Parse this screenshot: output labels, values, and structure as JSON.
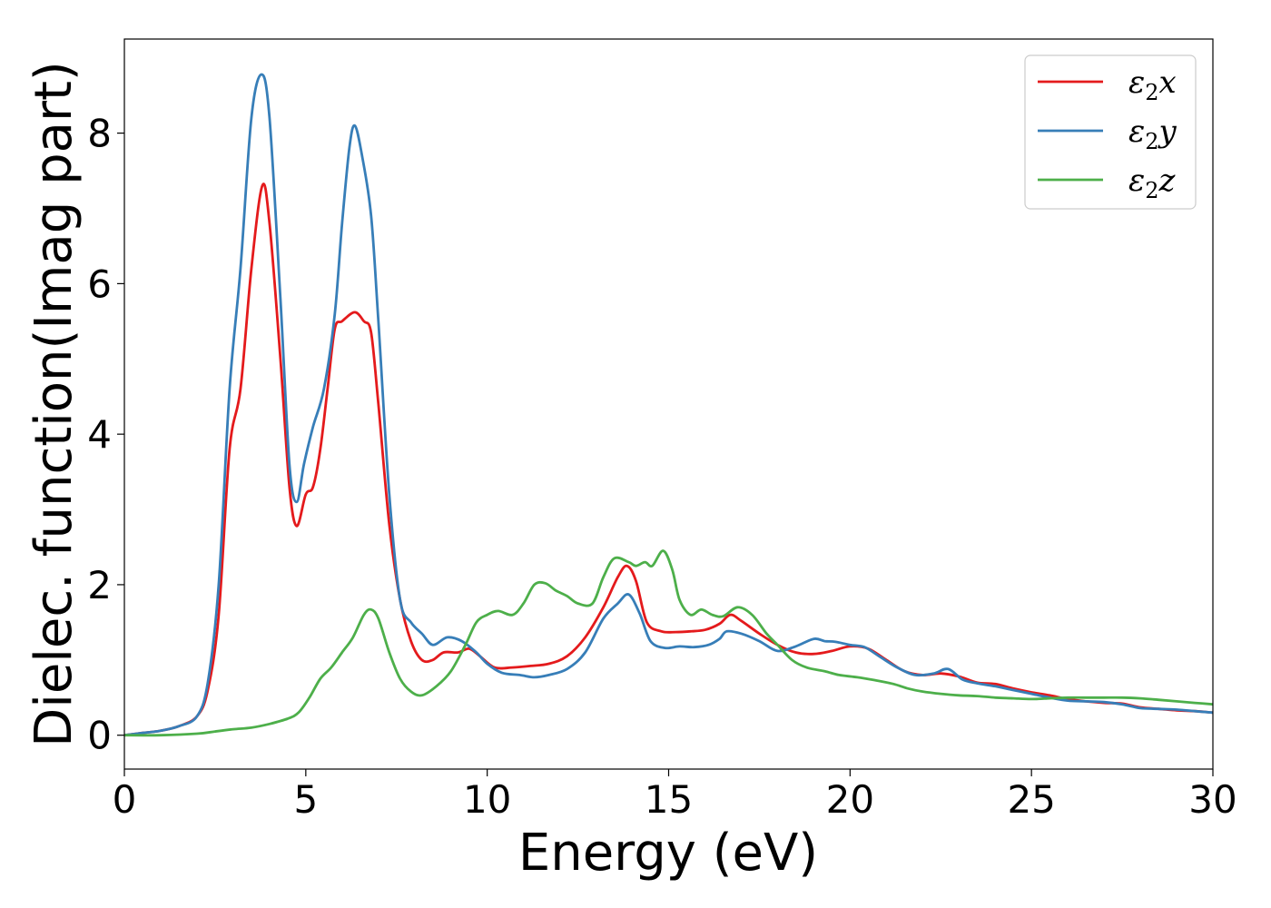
{
  "chart_data": {
    "type": "line",
    "title": "",
    "xlabel": "Energy (eV)",
    "ylabel": "Dielec. function(Imag part)",
    "xlim": [
      0,
      30
    ],
    "ylim": [
      -0.45,
      9.25
    ],
    "xticks": [
      0,
      5,
      10,
      15,
      20,
      25,
      30
    ],
    "yticks": [
      0,
      2,
      4,
      6,
      8
    ],
    "grid": false,
    "legend": {
      "position": "top-right",
      "entries": [
        {
          "series": 0,
          "base": "ε",
          "sub": "2",
          "tail": "x"
        },
        {
          "series": 1,
          "base": "ε",
          "sub": "2",
          "tail": "y"
        },
        {
          "series": 2,
          "base": "ε",
          "sub": "2",
          "tail": "z"
        }
      ]
    },
    "series": [
      {
        "name": "ε2x",
        "color": "#e41a1c",
        "points": [
          [
            0,
            0
          ],
          [
            0.5,
            0.03
          ],
          [
            1,
            0.06
          ],
          [
            1.5,
            0.12
          ],
          [
            2,
            0.25
          ],
          [
            2.3,
            0.6
          ],
          [
            2.6,
            1.6
          ],
          [
            2.9,
            3.8
          ],
          [
            3.2,
            4.6
          ],
          [
            3.5,
            6.2
          ],
          [
            3.8,
            7.3
          ],
          [
            4.0,
            6.8
          ],
          [
            4.3,
            5.0
          ],
          [
            4.55,
            3.3
          ],
          [
            4.75,
            2.78
          ],
          [
            5.0,
            3.2
          ],
          [
            5.2,
            3.3
          ],
          [
            5.4,
            3.8
          ],
          [
            5.6,
            4.6
          ],
          [
            5.8,
            5.4
          ],
          [
            6.0,
            5.5
          ],
          [
            6.35,
            5.62
          ],
          [
            6.6,
            5.5
          ],
          [
            6.8,
            5.35
          ],
          [
            7.0,
            4.4
          ],
          [
            7.3,
            2.8
          ],
          [
            7.6,
            1.8
          ],
          [
            7.9,
            1.25
          ],
          [
            8.2,
            1.0
          ],
          [
            8.5,
            1.0
          ],
          [
            8.8,
            1.1
          ],
          [
            9.2,
            1.1
          ],
          [
            9.5,
            1.15
          ],
          [
            9.8,
            1.05
          ],
          [
            10.2,
            0.9
          ],
          [
            10.7,
            0.9
          ],
          [
            11.2,
            0.92
          ],
          [
            11.7,
            0.95
          ],
          [
            12.2,
            1.05
          ],
          [
            12.7,
            1.3
          ],
          [
            13.2,
            1.7
          ],
          [
            13.6,
            2.1
          ],
          [
            13.85,
            2.25
          ],
          [
            14.1,
            2.05
          ],
          [
            14.4,
            1.5
          ],
          [
            14.8,
            1.38
          ],
          [
            15.2,
            1.37
          ],
          [
            15.6,
            1.38
          ],
          [
            16.0,
            1.4
          ],
          [
            16.4,
            1.48
          ],
          [
            16.7,
            1.6
          ],
          [
            17.0,
            1.52
          ],
          [
            17.5,
            1.35
          ],
          [
            18.0,
            1.2
          ],
          [
            18.5,
            1.1
          ],
          [
            19.0,
            1.08
          ],
          [
            19.5,
            1.12
          ],
          [
            20.0,
            1.18
          ],
          [
            20.5,
            1.15
          ],
          [
            21.0,
            1.0
          ],
          [
            21.5,
            0.85
          ],
          [
            22.0,
            0.8
          ],
          [
            22.5,
            0.82
          ],
          [
            23.0,
            0.78
          ],
          [
            23.5,
            0.7
          ],
          [
            24.0,
            0.68
          ],
          [
            24.5,
            0.62
          ],
          [
            25.0,
            0.57
          ],
          [
            25.5,
            0.53
          ],
          [
            26.0,
            0.48
          ],
          [
            26.5,
            0.45
          ],
          [
            27.0,
            0.43
          ],
          [
            27.5,
            0.42
          ],
          [
            28.0,
            0.37
          ],
          [
            28.5,
            0.35
          ],
          [
            29.0,
            0.33
          ],
          [
            29.5,
            0.32
          ],
          [
            30.0,
            0.3
          ]
        ]
      },
      {
        "name": "ε2y",
        "color": "#377eb8",
        "points": [
          [
            0,
            0
          ],
          [
            0.5,
            0.03
          ],
          [
            1,
            0.06
          ],
          [
            1.5,
            0.12
          ],
          [
            2,
            0.25
          ],
          [
            2.3,
            0.7
          ],
          [
            2.6,
            2.0
          ],
          [
            2.9,
            4.6
          ],
          [
            3.2,
            6.2
          ],
          [
            3.5,
            8.2
          ],
          [
            3.78,
            8.78
          ],
          [
            4.0,
            8.2
          ],
          [
            4.3,
            5.8
          ],
          [
            4.55,
            3.6
          ],
          [
            4.75,
            3.1
          ],
          [
            4.95,
            3.6
          ],
          [
            5.2,
            4.1
          ],
          [
            5.5,
            4.6
          ],
          [
            5.8,
            5.6
          ],
          [
            6.0,
            6.8
          ],
          [
            6.2,
            7.8
          ],
          [
            6.35,
            8.1
          ],
          [
            6.55,
            7.7
          ],
          [
            6.8,
            6.9
          ],
          [
            7.0,
            5.5
          ],
          [
            7.3,
            3.2
          ],
          [
            7.6,
            1.8
          ],
          [
            7.9,
            1.5
          ],
          [
            8.2,
            1.35
          ],
          [
            8.5,
            1.2
          ],
          [
            8.9,
            1.3
          ],
          [
            9.3,
            1.25
          ],
          [
            9.7,
            1.1
          ],
          [
            10.0,
            0.95
          ],
          [
            10.4,
            0.83
          ],
          [
            10.9,
            0.8
          ],
          [
            11.3,
            0.77
          ],
          [
            11.7,
            0.8
          ],
          [
            12.2,
            0.88
          ],
          [
            12.7,
            1.1
          ],
          [
            13.2,
            1.55
          ],
          [
            13.6,
            1.75
          ],
          [
            13.9,
            1.87
          ],
          [
            14.2,
            1.62
          ],
          [
            14.5,
            1.25
          ],
          [
            14.9,
            1.16
          ],
          [
            15.3,
            1.18
          ],
          [
            15.7,
            1.17
          ],
          [
            16.1,
            1.2
          ],
          [
            16.4,
            1.28
          ],
          [
            16.6,
            1.38
          ],
          [
            17.0,
            1.35
          ],
          [
            17.5,
            1.25
          ],
          [
            18.0,
            1.12
          ],
          [
            18.5,
            1.18
          ],
          [
            19.0,
            1.28
          ],
          [
            19.3,
            1.25
          ],
          [
            19.6,
            1.24
          ],
          [
            20.0,
            1.2
          ],
          [
            20.4,
            1.17
          ],
          [
            20.8,
            1.05
          ],
          [
            21.3,
            0.9
          ],
          [
            21.8,
            0.8
          ],
          [
            22.3,
            0.82
          ],
          [
            22.7,
            0.88
          ],
          [
            23.1,
            0.74
          ],
          [
            23.5,
            0.69
          ],
          [
            24.0,
            0.65
          ],
          [
            24.5,
            0.6
          ],
          [
            25.0,
            0.55
          ],
          [
            25.5,
            0.5
          ],
          [
            26.0,
            0.46
          ],
          [
            26.5,
            0.45
          ],
          [
            27.0,
            0.44
          ],
          [
            27.5,
            0.41
          ],
          [
            28.0,
            0.36
          ],
          [
            28.5,
            0.35
          ],
          [
            29.0,
            0.34
          ],
          [
            29.5,
            0.32
          ],
          [
            30.0,
            0.3
          ]
        ]
      },
      {
        "name": "ε2z",
        "color": "#4daf4a",
        "points": [
          [
            0,
            0
          ],
          [
            1,
            0
          ],
          [
            2,
            0.02
          ],
          [
            2.5,
            0.05
          ],
          [
            3,
            0.08
          ],
          [
            3.5,
            0.1
          ],
          [
            4,
            0.15
          ],
          [
            4.5,
            0.22
          ],
          [
            4.8,
            0.3
          ],
          [
            5.1,
            0.5
          ],
          [
            5.4,
            0.75
          ],
          [
            5.7,
            0.9
          ],
          [
            6.0,
            1.1
          ],
          [
            6.3,
            1.3
          ],
          [
            6.6,
            1.6
          ],
          [
            6.8,
            1.67
          ],
          [
            7.0,
            1.55
          ],
          [
            7.3,
            1.1
          ],
          [
            7.6,
            0.75
          ],
          [
            7.9,
            0.58
          ],
          [
            8.2,
            0.53
          ],
          [
            8.6,
            0.65
          ],
          [
            9.0,
            0.85
          ],
          [
            9.4,
            1.2
          ],
          [
            9.7,
            1.5
          ],
          [
            10.0,
            1.6
          ],
          [
            10.3,
            1.65
          ],
          [
            10.7,
            1.6
          ],
          [
            11.0,
            1.75
          ],
          [
            11.3,
            2.0
          ],
          [
            11.6,
            2.02
          ],
          [
            11.9,
            1.92
          ],
          [
            12.2,
            1.85
          ],
          [
            12.5,
            1.75
          ],
          [
            12.9,
            1.75
          ],
          [
            13.2,
            2.1
          ],
          [
            13.5,
            2.35
          ],
          [
            13.9,
            2.3
          ],
          [
            14.1,
            2.25
          ],
          [
            14.35,
            2.3
          ],
          [
            14.55,
            2.25
          ],
          [
            14.85,
            2.45
          ],
          [
            15.1,
            2.2
          ],
          [
            15.3,
            1.8
          ],
          [
            15.6,
            1.6
          ],
          [
            15.9,
            1.67
          ],
          [
            16.2,
            1.6
          ],
          [
            16.5,
            1.58
          ],
          [
            16.9,
            1.7
          ],
          [
            17.3,
            1.6
          ],
          [
            17.7,
            1.35
          ],
          [
            18.0,
            1.2
          ],
          [
            18.4,
            1.0
          ],
          [
            18.8,
            0.9
          ],
          [
            19.3,
            0.85
          ],
          [
            19.7,
            0.8
          ],
          [
            20.2,
            0.77
          ],
          [
            20.7,
            0.73
          ],
          [
            21.2,
            0.68
          ],
          [
            21.6,
            0.62
          ],
          [
            22.0,
            0.58
          ],
          [
            22.5,
            0.55
          ],
          [
            23.0,
            0.53
          ],
          [
            23.5,
            0.52
          ],
          [
            24.0,
            0.5
          ],
          [
            24.5,
            0.49
          ],
          [
            25.0,
            0.48
          ],
          [
            25.5,
            0.49
          ],
          [
            26.0,
            0.5
          ],
          [
            26.5,
            0.5
          ],
          [
            27.0,
            0.5
          ],
          [
            27.5,
            0.5
          ],
          [
            28.0,
            0.49
          ],
          [
            28.5,
            0.47
          ],
          [
            29.0,
            0.45
          ],
          [
            29.5,
            0.43
          ],
          [
            30.0,
            0.41
          ]
        ]
      }
    ]
  }
}
